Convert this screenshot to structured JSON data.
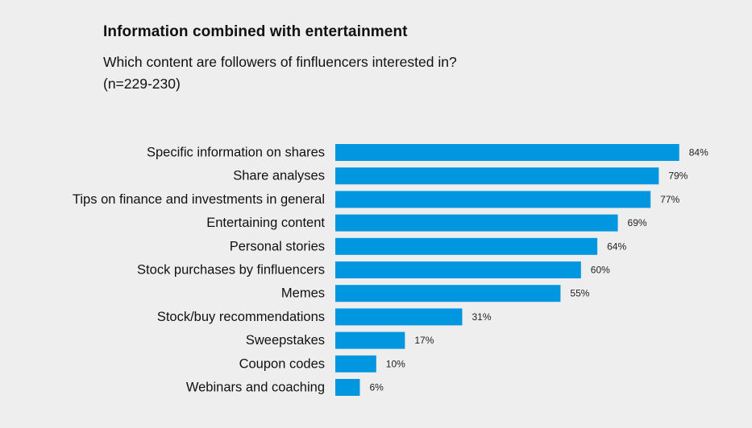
{
  "header": {
    "title": "Information combined with entertainment",
    "subtitle_line1": "Which content are followers of finfluencers interested in?",
    "subtitle_line2": "(n=229-230)"
  },
  "chart_data": {
    "type": "bar",
    "orientation": "horizontal",
    "title": "Information combined with entertainment",
    "subtitle": "Which content are followers of finfluencers interested in? (n=229-230)",
    "xlabel": "",
    "ylabel": "",
    "unit": "%",
    "xlim": [
      0,
      100
    ],
    "grid": false,
    "categories": [
      "Specific information on shares",
      "Share analyses",
      "Tips on finance and investments in general",
      "Entertaining content",
      "Personal stories",
      "Stock purchases by finfluencers",
      "Memes",
      "Stock/buy recommendations",
      "Sweepstakes",
      "Coupon codes",
      "Webinars and coaching"
    ],
    "values": [
      84,
      79,
      77,
      69,
      64,
      60,
      55,
      31,
      17,
      10,
      6
    ],
    "value_labels": [
      "84%",
      "79%",
      "77%",
      "69%",
      "64%",
      "60%",
      "55%",
      "31%",
      "17%",
      "10%",
      "6%"
    ],
    "bar_color": "#0096e0"
  }
}
